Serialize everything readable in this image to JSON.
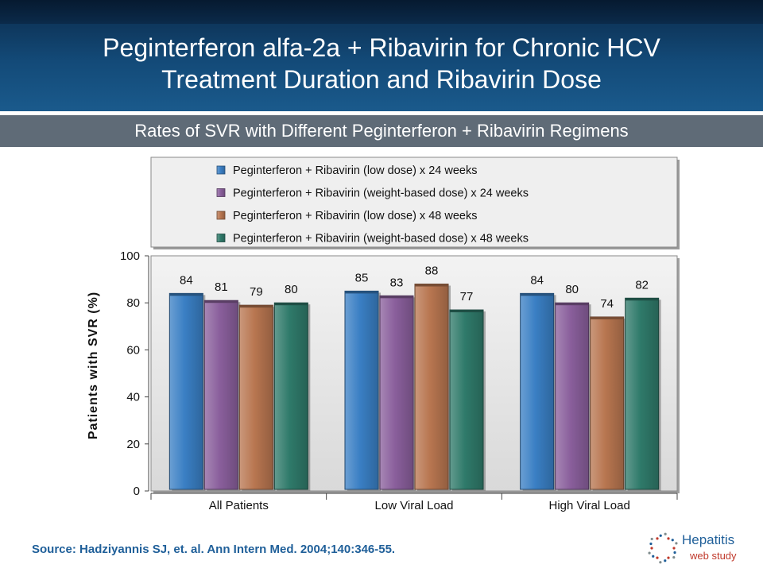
{
  "header": {
    "title_line1": "Peginterferon alfa-2a + Ribavirin for Chronic HCV",
    "title_line2": "Treatment Duration and Ribavirin Dose",
    "subtitle": "Rates of SVR with Different Peginterferon + Ribavirin Regimens"
  },
  "chart_data": {
    "type": "bar",
    "ylabel": "Patients with SVR (%)",
    "ylim": [
      0,
      100
    ],
    "yticks": [
      0,
      20,
      40,
      60,
      80,
      100
    ],
    "categories": [
      "All Patients",
      "Low Viral Load",
      "High Viral Load"
    ],
    "legend_position": "top",
    "grid": false,
    "series": [
      {
        "name": "Peginterferon + Ribavirin (low dose) x 24 weeks",
        "color": "#3a7fc4",
        "values": [
          84,
          85,
          84
        ]
      },
      {
        "name": "Peginterferon + Ribavirin (weight-based dose) x 24 weeks",
        "color": "#8a5f9c",
        "values": [
          81,
          83,
          80
        ]
      },
      {
        "name": "Peginterferon + Ribavirin (low dose) x 48 weeks",
        "color": "#b87650",
        "values": [
          79,
          88,
          74
        ]
      },
      {
        "name": "Peginterferon + Ribavirin (weight-based dose) x 48 weeks",
        "color": "#2f7a6a",
        "values": [
          80,
          77,
          82
        ]
      }
    ]
  },
  "footer": {
    "source": "Source: Hadziyannis SJ, et. al. Ann Intern Med. 2004;140:346-55.",
    "logo_word": "Hepatitis",
    "logo_sub": "web study",
    "logo_icon": "dotted-circle-icon"
  }
}
